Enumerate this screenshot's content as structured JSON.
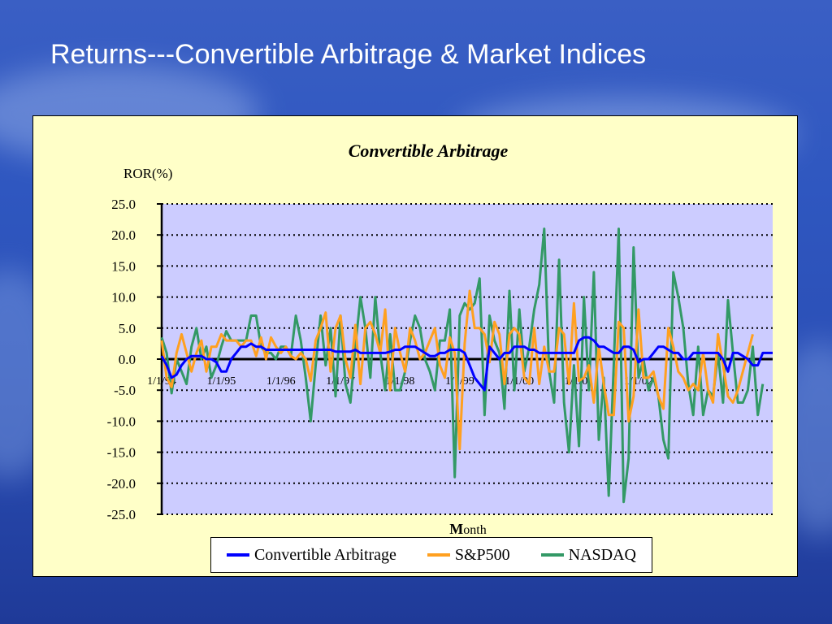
{
  "slide": {
    "title": "Returns---Convertible Arbitrage & Market Indices"
  },
  "colors": {
    "convertible": "#0000ff",
    "sp500": "#ffa020",
    "nasdaq": "#339966",
    "plot_bg": "#ccccff",
    "frame_bg": "#ffffc8"
  },
  "chart_data": {
    "type": "line",
    "title": "Convertible Arbitrage",
    "ylabel": "ROR(%)",
    "xlabel": "Month",
    "ylim": [
      -25,
      25
    ],
    "yticks": [
      "25.0",
      "20.0",
      "15.0",
      "10.0",
      "5.0",
      "0.0",
      "-5.0",
      "-10.0",
      "-15.0",
      "-20.0",
      "-25.0"
    ],
    "xtick_labels": [
      "1/1/94",
      "1/1/95",
      "1/1/96",
      "1/1/97",
      "1/1/98",
      "1/1/99",
      "1/1/00",
      "1/1/01",
      "1/1/02"
    ],
    "grid": "horizontal dotted",
    "legend_position": "bottom",
    "series": [
      {
        "name": "Convertible Arbitrage",
        "values": [
          0.5,
          -1,
          -3,
          -2.5,
          -1,
          0,
          0.5,
          0.5,
          0.5,
          0,
          0,
          -0.5,
          -2,
          -2,
          0,
          1,
          2,
          2,
          2.5,
          2,
          2,
          1.5,
          1.5,
          1.5,
          1.5,
          1.5,
          1.5,
          1.5,
          1.5,
          1.5,
          1.5,
          1.5,
          1.5,
          1.5,
          1.5,
          1.2,
          1.2,
          1.2,
          1.2,
          1.5,
          1,
          1,
          1,
          1,
          1,
          1,
          1.2,
          1.5,
          1.5,
          2,
          2,
          2,
          1.5,
          1,
          0.5,
          0.5,
          1,
          1,
          1.5,
          1.5,
          1.5,
          1,
          -1,
          -3,
          -4,
          -5,
          2,
          1,
          0,
          1,
          1,
          2,
          2,
          2,
          1.5,
          1.5,
          1,
          1,
          1,
          1,
          1,
          1,
          1,
          1,
          3,
          3.5,
          3.5,
          3,
          2,
          2,
          1.5,
          1,
          1,
          2,
          2,
          1.5,
          -0.5,
          0,
          0,
          1,
          2,
          2,
          1.5,
          1,
          1,
          0,
          0,
          1,
          1,
          1,
          1,
          1,
          1,
          0,
          -2,
          1,
          1,
          0.5,
          0,
          -1,
          -1,
          1,
          1,
          1
        ]
      },
      {
        "name": "S&P500",
        "values": [
          3,
          -3,
          -4.5,
          1,
          4,
          1,
          -2,
          1,
          3,
          -2,
          2,
          2,
          4,
          3,
          3,
          3,
          2,
          3,
          3,
          0.5,
          3.5,
          0,
          3.5,
          2,
          1,
          2,
          0.5,
          0,
          1,
          0,
          -3.5,
          3,
          5,
          7.5,
          -2,
          5,
          7,
          0,
          -3,
          5.5,
          -4,
          5,
          6,
          4,
          1,
          8,
          -5,
          5,
          1,
          -2,
          5,
          3,
          0,
          1,
          3,
          5,
          -1,
          -3,
          3.5,
          1,
          -14.5,
          2.5,
          11,
          5,
          5,
          4,
          -0.5,
          6,
          4,
          -4,
          4,
          5,
          4,
          -3,
          -4,
          5,
          -4,
          2,
          -2,
          -2,
          5,
          4,
          -4,
          9,
          -3.5,
          -3,
          -1,
          -7,
          2,
          -4,
          -9,
          -9,
          6,
          5,
          -10,
          -6,
          8,
          -3,
          -3,
          -2,
          -6,
          -8,
          5,
          2,
          -2,
          -3,
          -5,
          -4,
          -5,
          1,
          -5,
          -7,
          4,
          -1,
          -6,
          -7,
          -5,
          -2,
          1,
          4
        ]
      },
      {
        "name": "NASDAQ",
        "values": [
          3.5,
          1,
          -5.5,
          0,
          -2,
          -4,
          2,
          5,
          0,
          2,
          -3,
          -1,
          2,
          4.5,
          3,
          3,
          3,
          3,
          7,
          7,
          2,
          1,
          1,
          0,
          2,
          2,
          0.5,
          7,
          3,
          -3,
          -10,
          -1,
          7,
          -1,
          5,
          -6,
          7,
          -4,
          -7,
          2,
          10,
          5,
          -3,
          10,
          1,
          -5,
          4,
          -5,
          -5,
          -2,
          3,
          7,
          5,
          0,
          -2,
          -5,
          3,
          3,
          8,
          -19,
          7,
          9,
          8,
          9,
          13,
          -9,
          7,
          3,
          1,
          -8,
          11,
          -5,
          8,
          -2,
          2,
          8,
          12,
          21,
          -2,
          -7,
          16,
          -7,
          -15,
          -1,
          -14,
          10,
          -5,
          14,
          -13,
          -3,
          -22,
          -1,
          21,
          -23,
          -16,
          18,
          -3,
          0,
          -5,
          -3,
          -6,
          -13,
          -16,
          14,
          10,
          5,
          -4,
          -9,
          2,
          -9,
          -5,
          -6,
          1,
          -7,
          9.5,
          1,
          -7,
          -7,
          -5,
          2,
          -9,
          -4
        ]
      }
    ]
  }
}
